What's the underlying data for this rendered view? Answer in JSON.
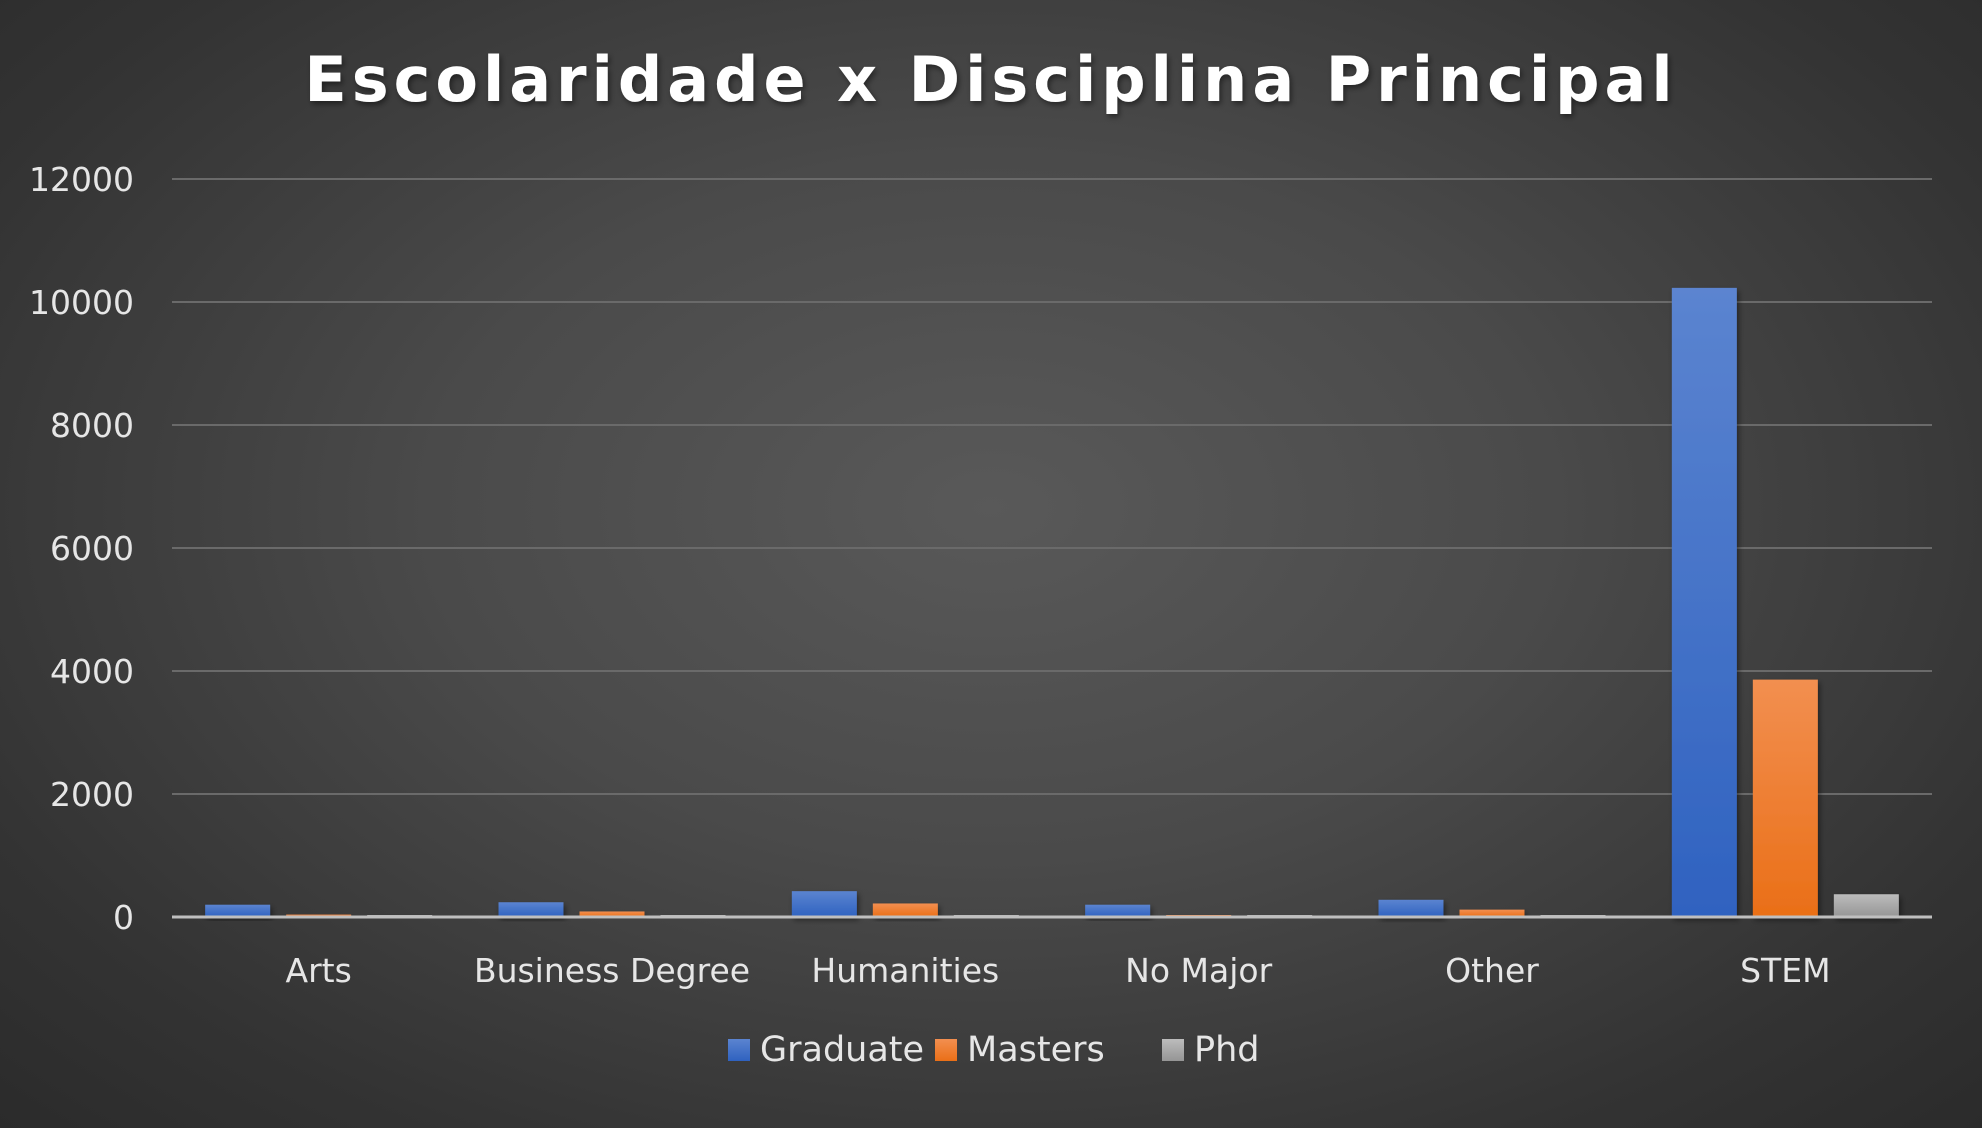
{
  "chart_data": {
    "type": "bar",
    "title": "Escolaridade x Disciplina Principal",
    "xlabel": "",
    "ylabel": "",
    "categories": [
      "Arts",
      "Business Degree",
      "Humanities",
      "No Major",
      "Other",
      "STEM"
    ],
    "series": [
      {
        "name": "Graduate",
        "color": "#4472c4",
        "values": [
          200,
          240,
          420,
          200,
          280,
          10230
        ]
      },
      {
        "name": "Masters",
        "color": "#ed7d31",
        "values": [
          40,
          90,
          220,
          30,
          120,
          3860
        ]
      },
      {
        "name": "Phd",
        "color": "#a5a5a5",
        "values": [
          20,
          30,
          30,
          20,
          30,
          370
        ]
      }
    ],
    "ylim": [
      0,
      12000
    ],
    "yticks": [
      0,
      2000,
      4000,
      6000,
      8000,
      10000,
      12000
    ],
    "grid": true,
    "legend_position": "bottom"
  }
}
